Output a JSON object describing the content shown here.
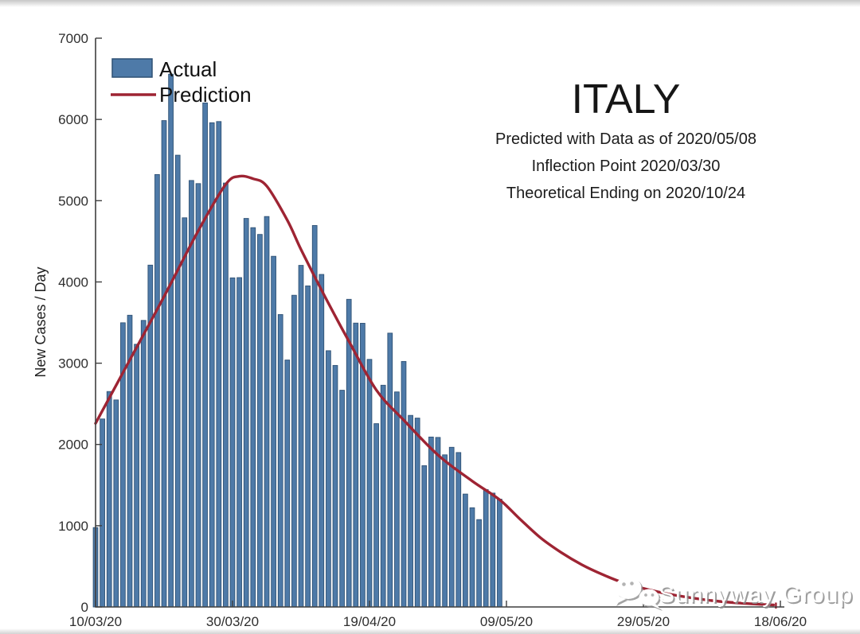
{
  "header": {
    "title": "ITALY",
    "subtitle1": "Predicted with Data as of 2020/05/08",
    "subtitle2": "Inflection Point 2020/03/30",
    "subtitle3": "Theoretical Ending on 2020/10/24"
  },
  "legend": {
    "actual": "Actual",
    "prediction": "Prediction"
  },
  "watermark": {
    "text": "Sunnyway Group"
  },
  "colors": {
    "bar_fill": "#4e7aa8",
    "bar_edge": "#2f5174",
    "prediction_line": "#9e2433",
    "axis": "#3f3f3f",
    "text": "#1a1a1a"
  },
  "chart_data": {
    "type": "bar",
    "title": "ITALY",
    "annotations": [
      "Predicted with Data as of 2020/05/08",
      "Inflection Point 2020/03/30",
      "Theoretical Ending on 2020/10/24"
    ],
    "xlabel": "",
    "ylabel": "New Cases / Day",
    "ylim": [
      0,
      7000
    ],
    "yticks": [
      0,
      1000,
      2000,
      3000,
      4000,
      5000,
      6000,
      7000
    ],
    "xtick_labels": [
      "10/03/20",
      "30/03/20",
      "19/04/20",
      "09/05/20",
      "29/05/20",
      "18/06/20"
    ],
    "xtick_days": [
      0,
      20,
      40,
      60,
      80,
      100
    ],
    "grid": false,
    "legend_position": "top-left",
    "series": [
      {
        "name": "Actual",
        "type": "bar",
        "start_date": "10/03/20",
        "day_step": 1,
        "values": [
          977,
          2313,
          2651,
          2547,
          3497,
          3590,
          3233,
          3526,
          4207,
          5322,
          5986,
          6557,
          5560,
          4789,
          5249,
          5210,
          6203,
          5959,
          5974,
          5217,
          4050,
          4053,
          4782,
          4668,
          4585,
          4805,
          4316,
          3599,
          3039,
          3836,
          4204,
          3951,
          4694,
          4092,
          3153,
          2972,
          2667,
          3786,
          3493,
          3491,
          3047,
          2256,
          2729,
          3370,
          2646,
          3021,
          2357,
          2324,
          1739,
          2091,
          2086,
          1872,
          1965,
          1900,
          1389,
          1221,
          1075,
          1444,
          1401,
          1327
        ]
      },
      {
        "name": "Prediction",
        "type": "line",
        "points_day_value": [
          [
            0,
            2260
          ],
          [
            5,
            3040
          ],
          [
            10,
            3820
          ],
          [
            15,
            4630
          ],
          [
            19,
            5200
          ],
          [
            21,
            5300
          ],
          [
            23,
            5270
          ],
          [
            25,
            5180
          ],
          [
            28,
            4760
          ],
          [
            30,
            4400
          ],
          [
            33,
            3900
          ],
          [
            35,
            3580
          ],
          [
            37,
            3270
          ],
          [
            41,
            2670
          ],
          [
            45,
            2300
          ],
          [
            50,
            1870
          ],
          [
            55,
            1550
          ],
          [
            59,
            1320
          ],
          [
            62,
            1080
          ],
          [
            65,
            850
          ],
          [
            68,
            670
          ],
          [
            71,
            520
          ],
          [
            74,
            400
          ],
          [
            77,
            300
          ],
          [
            80,
            228
          ],
          [
            83,
            170
          ],
          [
            86,
            125
          ],
          [
            90,
            78
          ],
          [
            94,
            48
          ],
          [
            97,
            32
          ],
          [
            99,
            24
          ]
        ]
      }
    ]
  }
}
